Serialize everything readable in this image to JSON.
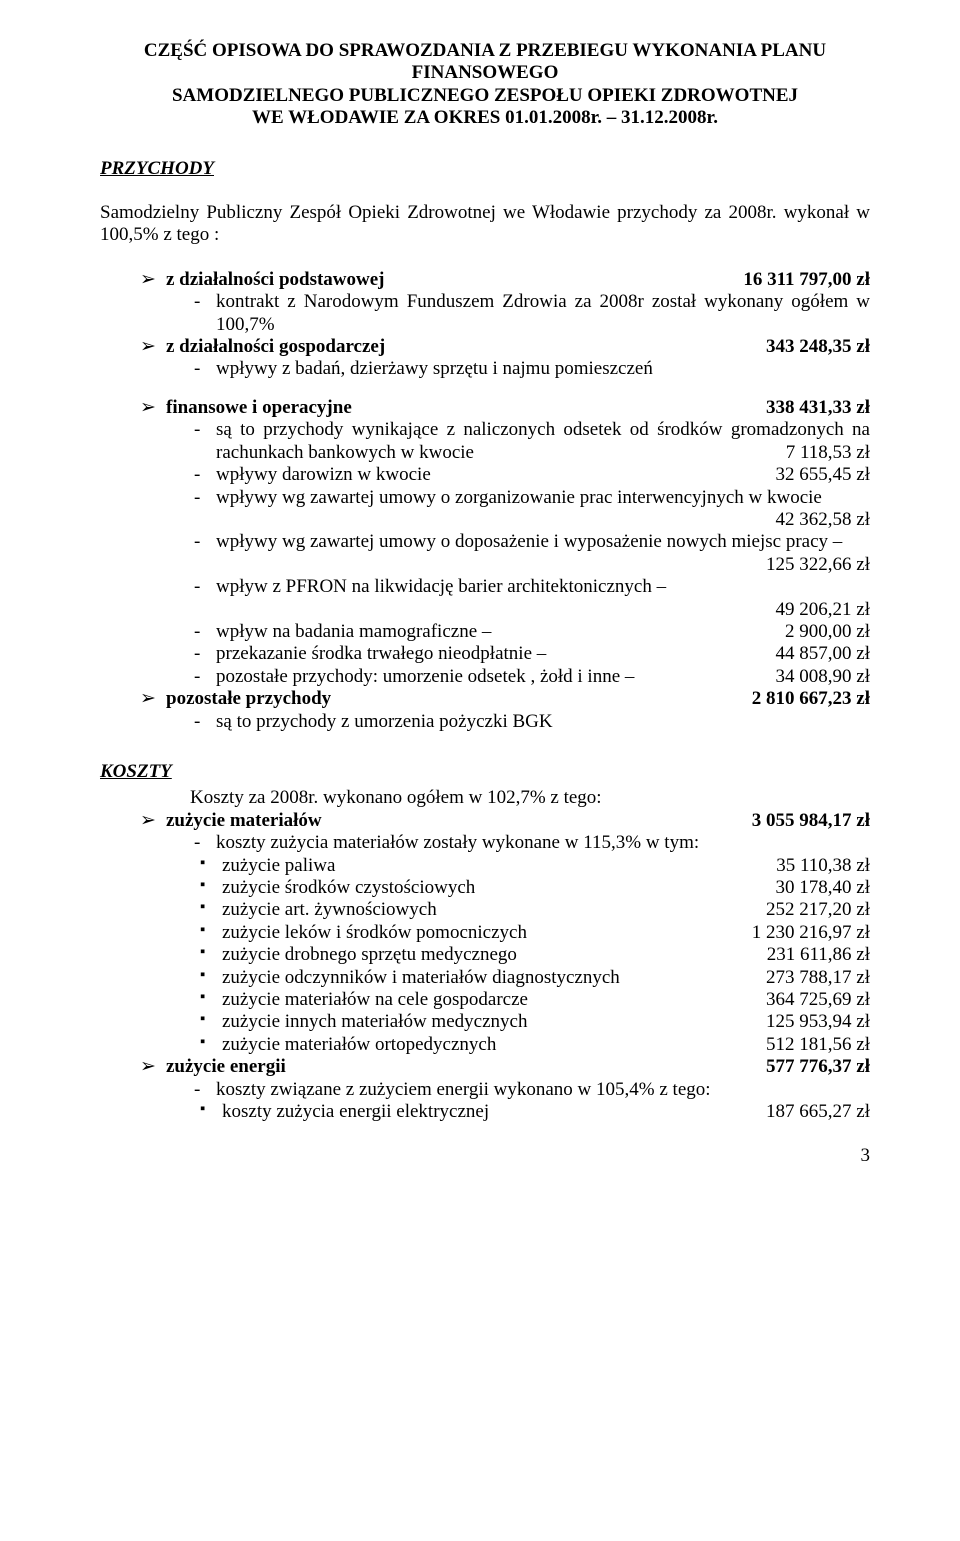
{
  "title": {
    "l1": "CZĘŚĆ OPISOWA DO SPRAWOZDANIA Z  PRZEBIEGU  WYKONANIA  PLANU",
    "l2": "FINANSOWEGO",
    "l3": "SAMODZIELNEGO PUBLICZNEGO ZESPOŁU OPIEKI ZDROWOTNEJ",
    "l4": "WE WŁODAWIE ZA OKRES 01.01.2008r. – 31.12.2008r."
  },
  "przychody": {
    "heading": "PRZYCHODY",
    "intro": "Samodzielny Publiczny Zespół Opieki Zdrowotnej we Włodawie przychody za 2008r. wykonał w 100,5% z tego :",
    "item1": {
      "label": "z działalności podstawowej",
      "amount": "16 311 797,00 zł",
      "sub": "kontrakt z Narodowym Funduszem Zdrowia za 2008r został wykonany ogółem w 100,7%"
    },
    "item2": {
      "label": "z działalności gospodarczej",
      "amount": "343 248,35 zł",
      "sub": "wpływy z badań, dzierżawy sprzętu i najmu pomieszczeń"
    },
    "item3": {
      "label": "finansowe i operacyjne",
      "amount": "338 431,33 zł",
      "s1a": "są to przychody wynikające z naliczonych odsetek od środków gromadzonych na rachunkach bankowych w kwocie",
      "s1b": "7 118,53 zł",
      "s2a": "wpływy darowizn w kwocie",
      "s2b": "32 655,45 zł",
      "s3a": "wpływy wg zawartej umowy o zorganizowanie prac interwencyjnych w kwocie",
      "s3b": "42 362,58 zł",
      "s4a": "wpływy wg zawartej umowy o doposażenie i wyposażenie nowych miejsc pracy –",
      "s4b": "125 322,66 zł",
      "s5a": "wpływ z PFRON na likwidację barier architektonicznych –",
      "s5b": "49 206,21 zł",
      "s6a": "wpływ na badania mamograficzne –",
      "s6b": "2 900,00 zł",
      "s7a": "przekazanie środka trwałego nieodpłatnie –",
      "s7b": "44 857,00 zł",
      "s8a": "pozostałe przychody: umorzenie odsetek , żołd i inne –",
      "s8b": "34 008,90 zł"
    },
    "item4": {
      "label": "pozostałe przychody",
      "amount": "2 810 667,23 zł",
      "sub": "są to przychody z umorzenia pożyczki BGK"
    }
  },
  "koszty": {
    "heading": "KOSZTY",
    "intro": "Koszty za 2008r. wykonano ogółem w 102,7% z tego:",
    "item1": {
      "label": "zużycie materiałów",
      "amount": "3 055 984,17 zł",
      "sub": "koszty zużycia materiałów zostały wykonane w 115,3% w tym:",
      "rows": [
        {
          "n": "zużycie paliwa",
          "v": "35 110,38 zł"
        },
        {
          "n": "zużycie środków czystościowych",
          "v": "30 178,40 zł"
        },
        {
          "n": "zużycie art. żywnościowych",
          "v": "252 217,20 zł"
        },
        {
          "n": "zużycie leków i środków pomocniczych",
          "v": "1 230 216,97 zł"
        },
        {
          "n": "zużycie drobnego sprzętu medycznego",
          "v": "231 611,86 zł"
        },
        {
          "n": "zużycie odczynników i materiałów diagnostycznych",
          "v": "273 788,17 zł"
        },
        {
          "n": "zużycie materiałów na cele gospodarcze",
          "v": "364 725,69 zł"
        },
        {
          "n": "zużycie innych materiałów medycznych",
          "v": "125 953,94 zł"
        },
        {
          "n": "zużycie materiałów ortopedycznych",
          "v": "512 181,56 zł"
        }
      ]
    },
    "item2": {
      "label": "zużycie energii",
      "amount": "577 776,37 zł",
      "sub": "koszty związane z zużyciem energii wykonano w 105,4% z tego:",
      "rows": [
        {
          "n": "koszty zużycia energii elektrycznej",
          "v": "187 665,27 zł"
        }
      ]
    }
  },
  "pageNumber": "3"
}
